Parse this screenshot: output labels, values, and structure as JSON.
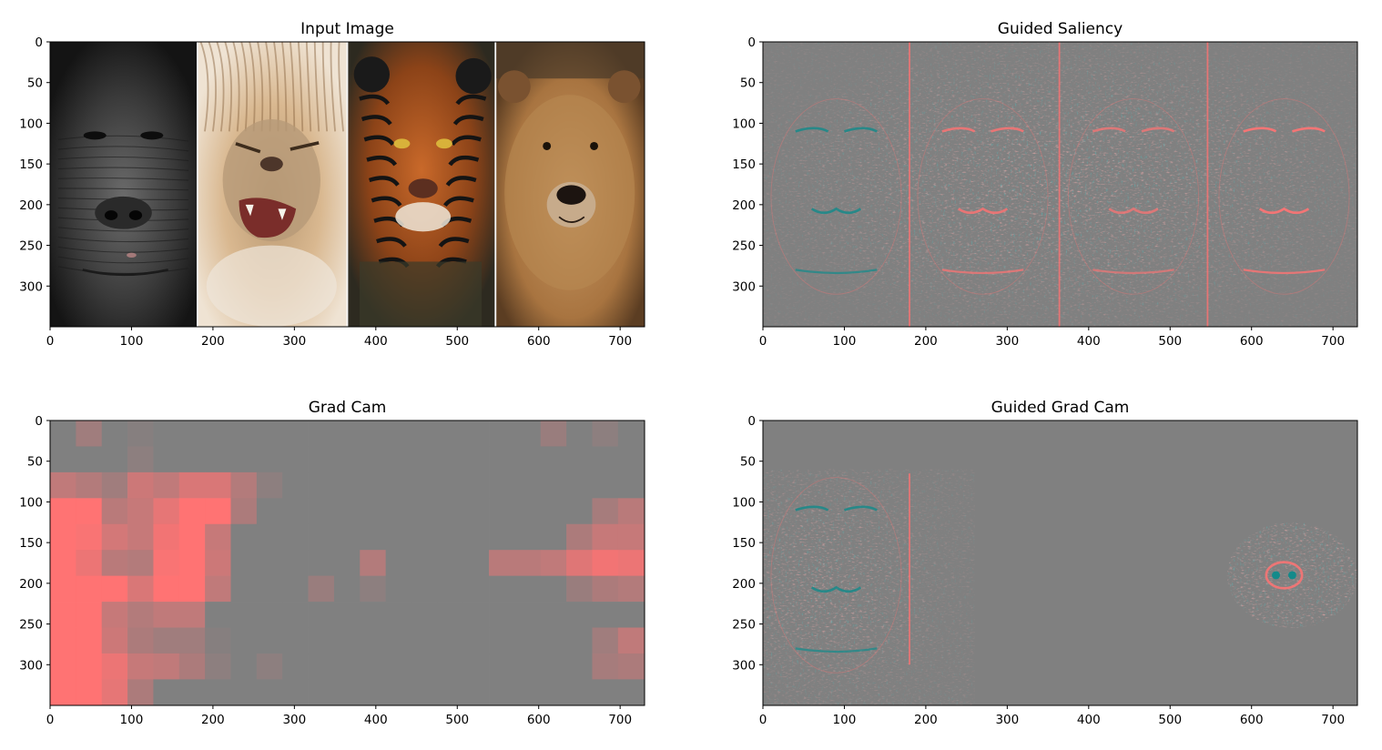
{
  "chart_data": [
    {
      "type": "heatmap",
      "title": "Input Image",
      "image_content": [
        "gorilla-face",
        "lion-face",
        "tiger-face",
        "bear-face"
      ],
      "xlim": [
        0,
        730
      ],
      "ylim": [
        350,
        0
      ],
      "xticks": [
        0,
        100,
        200,
        300,
        400,
        500,
        600,
        700
      ],
      "yticks": [
        0,
        50,
        100,
        150,
        200,
        250,
        300
      ]
    },
    {
      "type": "heatmap",
      "title": "Guided Saliency",
      "xlim": [
        0,
        730
      ],
      "ylim": [
        350,
        0
      ],
      "xticks": [
        0,
        100,
        200,
        300,
        400,
        500,
        600,
        700
      ],
      "yticks": [
        0,
        50,
        100,
        150,
        200,
        250,
        300
      ]
    },
    {
      "type": "heatmap",
      "title": "Grad Cam",
      "xlim": [
        0,
        730
      ],
      "ylim": [
        350,
        0
      ],
      "xticks": [
        0,
        100,
        200,
        300,
        400,
        500,
        600,
        700
      ],
      "yticks": [
        0,
        50,
        100,
        150,
        200,
        250,
        300
      ],
      "grid_rows": 11,
      "grid_cols": 23,
      "cell_size": [
        31.7,
        31.8
      ],
      "base_color": "#808080",
      "peak_color": "#ff7373",
      "values": [
        [
          0,
          0.25,
          0,
          0.05,
          0,
          0,
          0,
          0,
          0,
          0,
          0,
          0,
          0,
          0,
          0,
          0,
          0,
          0,
          0,
          0.2,
          0,
          0.1,
          0
        ],
        [
          0,
          0,
          0,
          0.1,
          0,
          0,
          0,
          0,
          0,
          0,
          0,
          0,
          0,
          0,
          0,
          0,
          0,
          0,
          0,
          0,
          0,
          0,
          0
        ],
        [
          0.5,
          0.4,
          0.25,
          0.6,
          0.5,
          0.7,
          0.7,
          0.4,
          0.1,
          0,
          0,
          0,
          0,
          0,
          0,
          0,
          0,
          0,
          0,
          0,
          0,
          0,
          0
        ],
        [
          1,
          1,
          0.45,
          0.55,
          0.8,
          1,
          1,
          0.35,
          0,
          0,
          0,
          0,
          0,
          0,
          0,
          0,
          0,
          0,
          0,
          0,
          0,
          0.3,
          0.45
        ],
        [
          1,
          0.95,
          0.65,
          0.55,
          0.9,
          1,
          0.55,
          0,
          0,
          0,
          0,
          0,
          0,
          0,
          0,
          0,
          0,
          0,
          0,
          0,
          0.35,
          0.55,
          0.55
        ],
        [
          1,
          0.85,
          0.45,
          0.4,
          0.95,
          1,
          0.6,
          0,
          0,
          0,
          0,
          0,
          0.4,
          0,
          0,
          0,
          0,
          0.45,
          0.45,
          0.5,
          0.75,
          0.9,
          0.85
        ],
        [
          1,
          1,
          1,
          0.7,
          1,
          1,
          0.5,
          0,
          0,
          0,
          0.2,
          0,
          0.1,
          0,
          0,
          0,
          0,
          0,
          0,
          0,
          0.2,
          0.35,
          0.4
        ],
        [
          1,
          1,
          0.55,
          0.4,
          0.5,
          0.5,
          0,
          0,
          0,
          0,
          0,
          0,
          0,
          0,
          0,
          0,
          0,
          0,
          0,
          0,
          0,
          0,
          0
        ],
        [
          1,
          1,
          0.6,
          0.35,
          0.25,
          0.25,
          0.05,
          0,
          0,
          0,
          0,
          0,
          0,
          0,
          0,
          0,
          0,
          0,
          0,
          0,
          0,
          0.25,
          0.5
        ],
        [
          1,
          1,
          0.85,
          0.55,
          0.5,
          0.35,
          0.1,
          0,
          0.1,
          0,
          0,
          0,
          0,
          0,
          0,
          0,
          0,
          0,
          0,
          0,
          0,
          0.3,
          0.35
        ],
        [
          1,
          1,
          0.8,
          0.35,
          0,
          0,
          0,
          0,
          0,
          0,
          0,
          0,
          0,
          0,
          0,
          0,
          0,
          0,
          0,
          0,
          0,
          0,
          0
        ]
      ]
    },
    {
      "type": "heatmap",
      "title": "Guided Grad Cam",
      "xlim": [
        0,
        730
      ],
      "ylim": [
        350,
        0
      ],
      "xticks": [
        0,
        100,
        200,
        300,
        400,
        500,
        600,
        700
      ],
      "yticks": [
        0,
        50,
        100,
        150,
        200,
        250,
        300
      ]
    }
  ],
  "colors": {
    "neutral_gray": "#808080",
    "positive": "#ff7373",
    "negative": "#138a8a"
  }
}
